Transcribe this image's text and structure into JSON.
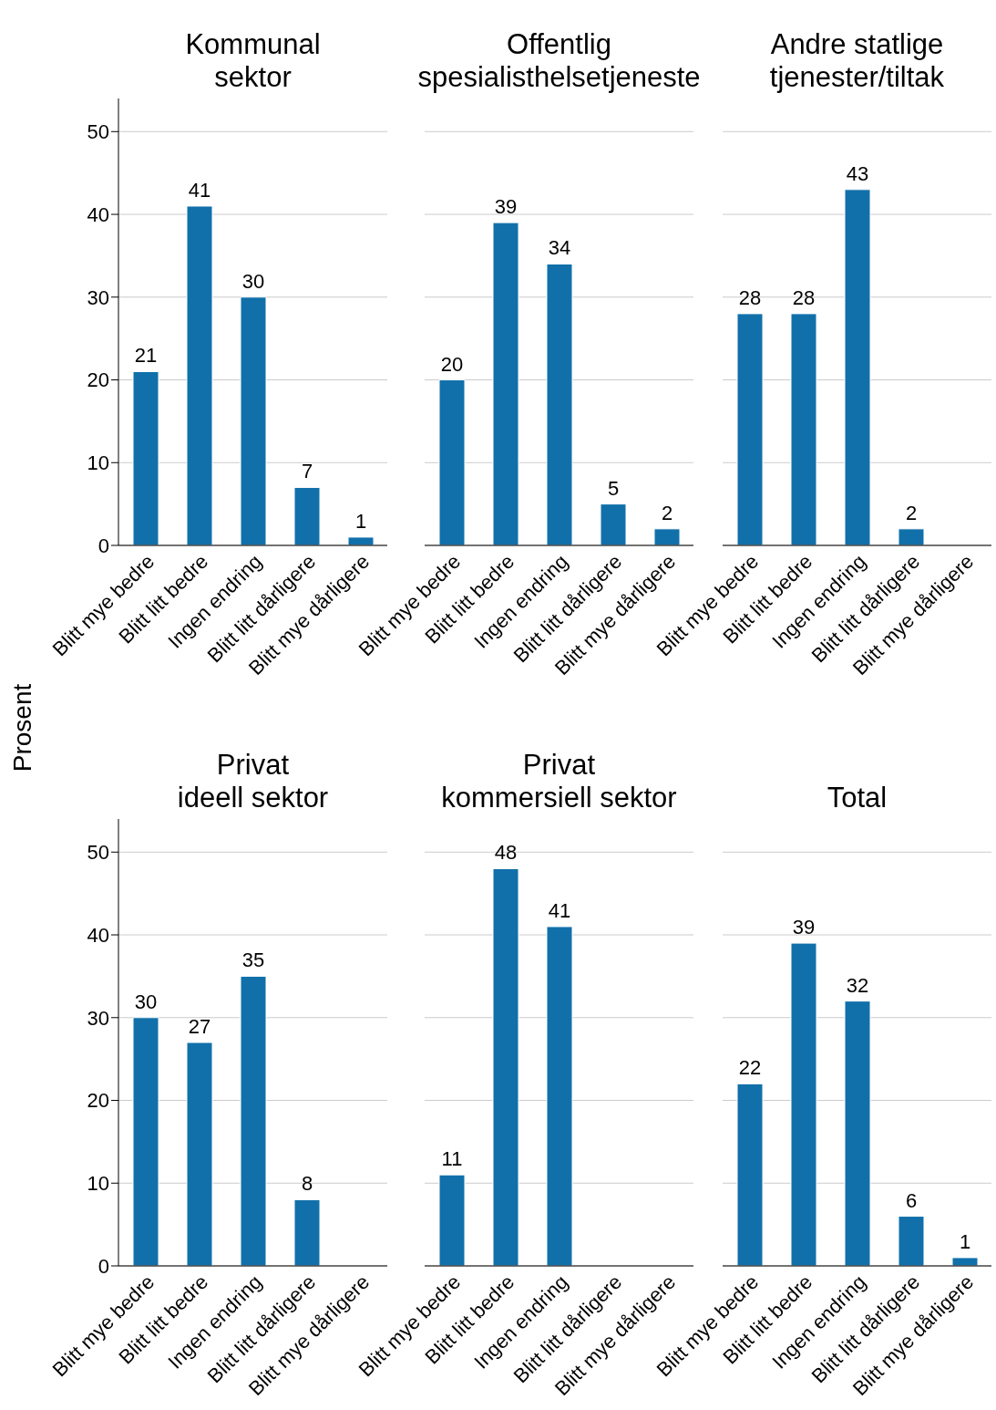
{
  "chart_data": [
    {
      "type": "bar",
      "title": "Kommunal\nsektor",
      "ylabel": "Prosent",
      "categories": [
        "Blitt mye bedre",
        "Blitt litt bedre",
        "Ingen endring",
        "Blitt litt dårligere",
        "Blitt mye dårligere"
      ],
      "values": [
        21,
        41,
        30,
        7,
        1
      ],
      "color": "#1170aa",
      "ylim": [
        0,
        54
      ],
      "yticks": [
        0,
        10,
        20,
        30,
        40,
        50
      ],
      "grid": "y",
      "data_labels": true
    },
    {
      "type": "bar",
      "title": "Offentlig\nspesialisthelsetjeneste",
      "categories": [
        "Blitt mye bedre",
        "Blitt litt bedre",
        "Ingen endring",
        "Blitt litt dårligere",
        "Blitt mye dårligere"
      ],
      "values": [
        20,
        39,
        34,
        5,
        2
      ],
      "color": "#1170aa",
      "ylim": [
        0,
        50
      ],
      "yticks": [
        0,
        10,
        20,
        30,
        40,
        50
      ],
      "grid": "y",
      "data_labels": true,
      "tick_labels": "x"
    },
    {
      "type": "bar",
      "title": "Andre statlige\ntjenester/tiltak",
      "categories": [
        "Blitt mye bedre",
        "Blitt litt bedre",
        "Ingen endring",
        "Blitt litt dårligere",
        "Blitt mye dårligere"
      ],
      "values": [
        28,
        28,
        43,
        2,
        null
      ],
      "color": "#1170aa",
      "ylim": [
        0,
        50
      ],
      "yticks": [
        0,
        10,
        20,
        30,
        40,
        50
      ],
      "grid": "y",
      "data_labels": true,
      "tick_labels": "x"
    },
    {
      "type": "bar",
      "title": "Privat\nideell sektor",
      "categories": [
        "Blitt mye bedre",
        "Blitt litt bedre",
        "Ingen endring",
        "Blitt litt dårligere",
        "Blitt mye dårligere"
      ],
      "values": [
        30,
        27,
        35,
        8,
        null
      ],
      "color": "#1170aa",
      "ylim": [
        0,
        54
      ],
      "yticks": [
        0,
        10,
        20,
        30,
        40,
        50
      ],
      "grid": "y",
      "data_labels": true
    },
    {
      "type": "bar",
      "title": "Privat\nkommersiell sektor",
      "categories": [
        "Blitt mye bedre",
        "Blitt litt bedre",
        "Ingen endring",
        "Blitt litt dårligere",
        "Blitt mye dårligere"
      ],
      "values": [
        11,
        48,
        41,
        null,
        null
      ],
      "color": "#1170aa",
      "ylim": [
        0,
        50
      ],
      "yticks": [
        0,
        10,
        20,
        30,
        40,
        50
      ],
      "grid": "y",
      "data_labels": true,
      "tick_labels": "x"
    },
    {
      "type": "bar",
      "title": "Total",
      "categories": [
        "Blitt mye bedre",
        "Blitt litt bedre",
        "Ingen endring",
        "Blitt litt dårligere",
        "Blitt mye dårligere"
      ],
      "values": [
        22,
        39,
        32,
        6,
        1
      ],
      "color": "#1170aa",
      "ylim": [
        0,
        50
      ],
      "yticks": [
        0,
        10,
        20,
        30,
        40,
        50
      ],
      "grid": "y",
      "data_labels": true,
      "tick_labels": "x"
    }
  ]
}
